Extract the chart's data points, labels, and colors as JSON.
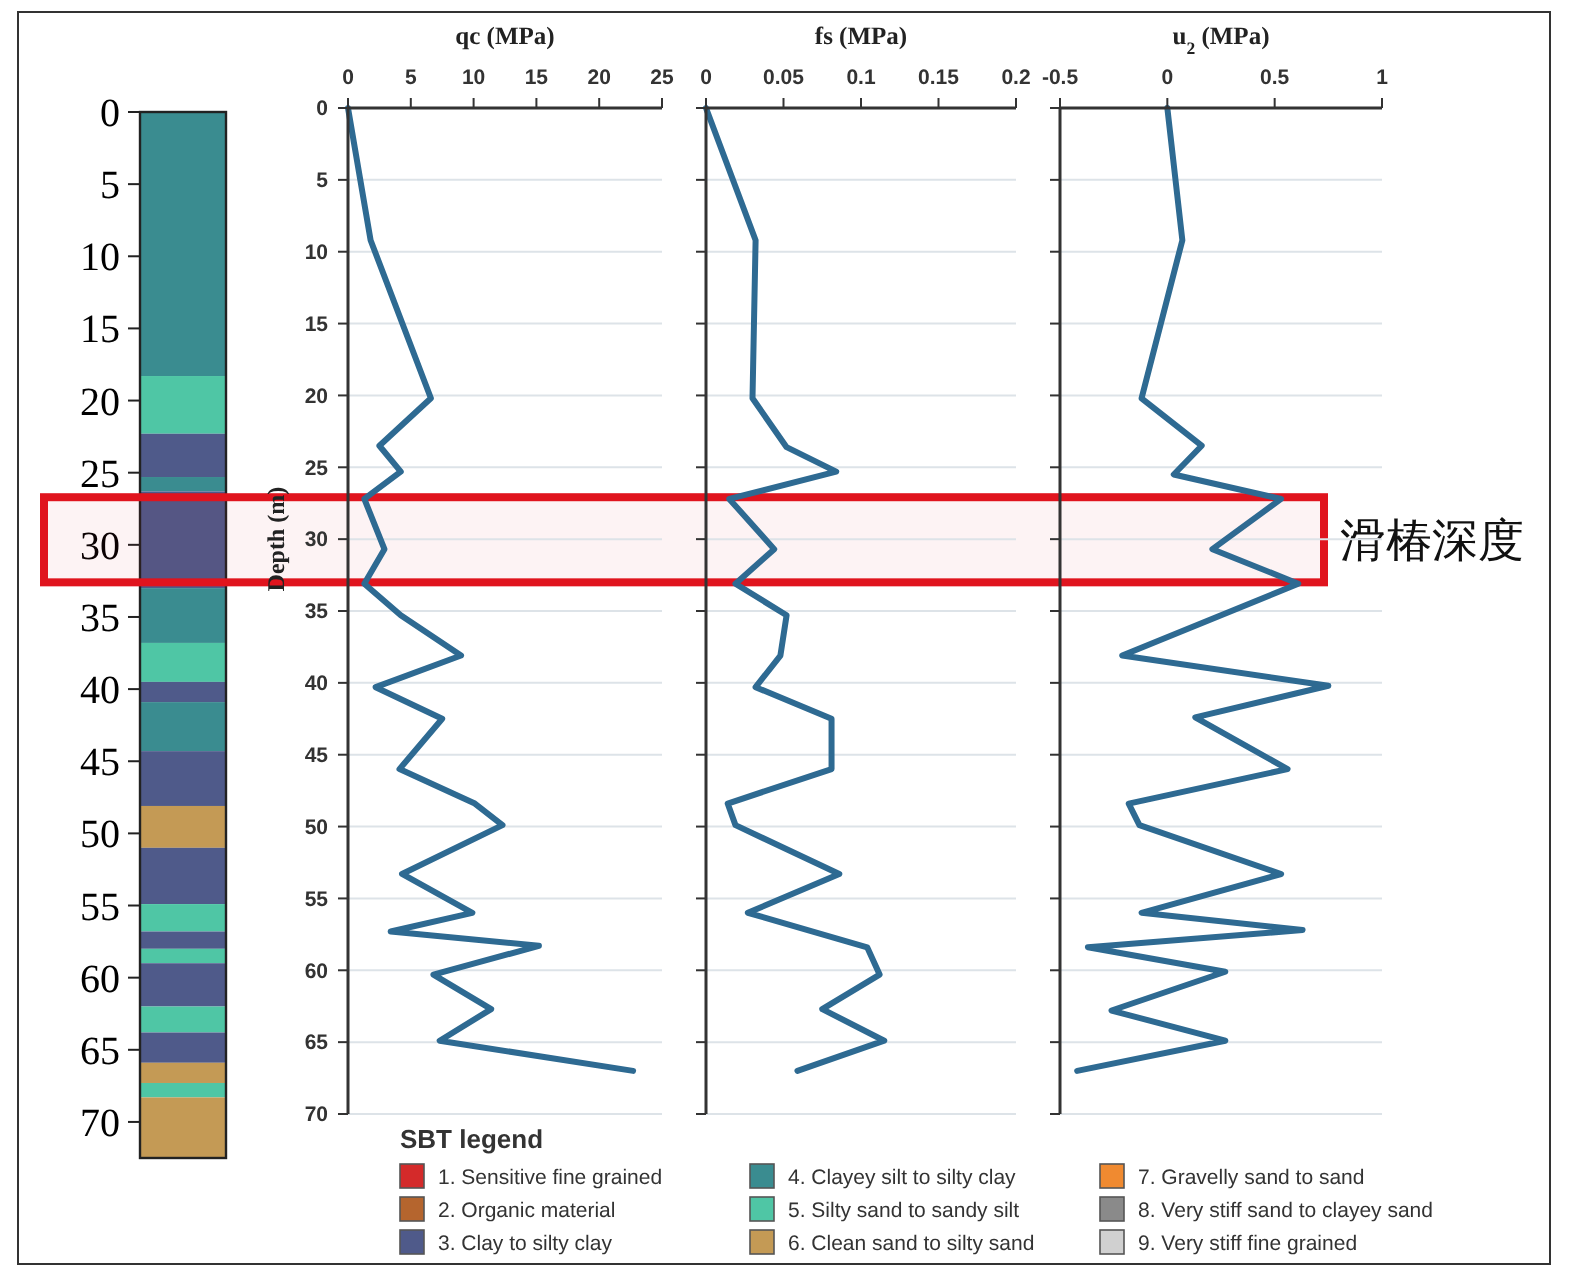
{
  "chart_data": [
    {
      "type": "bar",
      "stacked": true,
      "categories": [
        null
      ],
      "ylim": [
        72.5,
        0
      ],
      "yticks": [
        0,
        5,
        10,
        15,
        20,
        25,
        30,
        35,
        40,
        45,
        50,
        55,
        60,
        65,
        70
      ],
      "tick_labels": "y",
      "bands": [
        {
          "axis": "y",
          "from": 26.7,
          "to": 32.6,
          "label": "滑椿深度",
          "color": "#e0141e"
        }
      ],
      "series": [
        {
          "color": "#3a8c90",
          "values": [
            18.3
          ]
        },
        {
          "color": "#4fc6a5",
          "values": [
            4
          ]
        },
        {
          "color": "#4f5a8a",
          "values": [
            3
          ]
        },
        {
          "color": "#3a8c90",
          "values": [
            1
          ]
        },
        {
          "color": "#4f5a8a",
          "values": [
            6.7
          ]
        },
        {
          "color": "#3a8c90",
          "values": [
            3.8
          ]
        },
        {
          "color": "#4fc6a5",
          "values": [
            2.7
          ]
        },
        {
          "color": "#4f5a8a",
          "values": [
            1.4
          ]
        },
        {
          "color": "#3a8c90",
          "values": [
            3.4
          ]
        },
        {
          "color": "#4f5a8a",
          "values": [
            3.8
          ]
        },
        {
          "color": "#c49a55",
          "values": [
            2.9
          ]
        },
        {
          "color": "#4f5a8a",
          "values": [
            3.9
          ]
        },
        {
          "color": "#4fc6a5",
          "values": [
            1.9
          ]
        },
        {
          "color": "#4f5a8a",
          "values": [
            1.2
          ]
        },
        {
          "color": "#4fc6a5",
          "values": [
            1
          ]
        },
        {
          "color": "#4f5a8a",
          "values": [
            3
          ]
        },
        {
          "color": "#4fc6a5",
          "values": [
            1.8
          ]
        },
        {
          "color": "#4f5a8a",
          "values": [
            2.1
          ]
        },
        {
          "color": "#c49a55",
          "values": [
            1.4
          ]
        },
        {
          "color": "#4fc6a5",
          "values": [
            1
          ]
        },
        {
          "color": "#c49a55",
          "values": [
            4.2
          ]
        }
      ]
    },
    {
      "type": "line",
      "title": "qc (MPa)",
      "ylabel": "Depth (m)",
      "xlim": [
        0,
        25
      ],
      "xticks": [
        0,
        5,
        10,
        15,
        20,
        25
      ],
      "ylim": [
        70,
        0
      ],
      "yticks": [
        0,
        5,
        10,
        15,
        20,
        25,
        30,
        35,
        40,
        45,
        50,
        55,
        60,
        65,
        70
      ],
      "grid": "y",
      "series": [
        {
          "color": "#2e6a92",
          "x": [
            0,
            1.8,
            6.6,
            2.5,
            4.2,
            1.3,
            2.9,
            1.3,
            4.2,
            9.0,
            2.2,
            7.5,
            4.1,
            10.1,
            12.3,
            4.3,
            9.9,
            3.4,
            15.2,
            6.8,
            11.4,
            7.3,
            22.7
          ],
          "values": [
            0,
            9.2,
            20.2,
            23.5,
            25.3,
            27.2,
            30.7,
            33.1,
            35.3,
            38.1,
            40.3,
            42.5,
            46.0,
            48.4,
            49.9,
            53.3,
            56.0,
            57.3,
            58.3,
            60.3,
            62.7,
            64.9,
            67.0
          ]
        }
      ]
    },
    {
      "type": "line",
      "title": "fs (MPa)",
      "xlim": [
        0,
        0.2
      ],
      "xticks": [
        0,
        0.05,
        0.1,
        0.15,
        0.2
      ],
      "ylim": [
        70,
        0
      ],
      "yticks": [
        0,
        5,
        10,
        15,
        20,
        25,
        30,
        35,
        40,
        45,
        50,
        55,
        60,
        65,
        70
      ],
      "tick_labels": "x",
      "grid": "y",
      "series": [
        {
          "color": "#2e6a92",
          "x": [
            0,
            0.032,
            0.03,
            0.052,
            0.084,
            0.015,
            0.044,
            0.019,
            0.052,
            0.048,
            0.032,
            0.081,
            0.081,
            0.014,
            0.019,
            0.086,
            0.027,
            0.104,
            0.112,
            0.075,
            0.115,
            0.059
          ],
          "values": [
            0,
            9.2,
            20.2,
            23.6,
            25.3,
            27.2,
            30.7,
            33.1,
            35.3,
            38.1,
            40.3,
            42.5,
            46.0,
            48.4,
            49.9,
            53.3,
            56.0,
            58.4,
            60.3,
            62.7,
            64.9,
            67.0
          ]
        }
      ]
    },
    {
      "type": "line",
      "title": "u$_{2}$ (MPa)",
      "xlim": [
        -0.5,
        1
      ],
      "xticks": [
        -0.5,
        0,
        0.5,
        1
      ],
      "ylim": [
        70,
        0
      ],
      "yticks": [
        0,
        5,
        10,
        15,
        20,
        25,
        30,
        35,
        40,
        45,
        50,
        55,
        60,
        65,
        70
      ],
      "tick_labels": "x",
      "grid": "y",
      "series": [
        {
          "color": "#2e6a92",
          "x": [
            0,
            0.07,
            -0.12,
            0.16,
            0.03,
            0.53,
            0.21,
            0.61,
            -0.21,
            0.75,
            0.13,
            0.56,
            -0.18,
            -0.13,
            0.53,
            -0.12,
            0.63,
            -0.37,
            0.27,
            -0.26,
            0.27,
            -0.42
          ],
          "values": [
            0,
            9.2,
            20.2,
            23.5,
            25.5,
            27.2,
            30.7,
            33.1,
            38.1,
            40.2,
            42.4,
            46.0,
            48.4,
            49.9,
            53.3,
            56.0,
            57.2,
            58.4,
            60.1,
            62.8,
            64.9,
            67.0
          ]
        }
      ]
    },
    {
      "type": "other",
      "title": "SBT legend",
      "annotations": [
        "1. Sensitive fine grained",
        "2. Organic material",
        "3. Clay to silty clay",
        "4. Clayey silt to silty clay",
        "5. Silty sand to sandy silt",
        "6. Clean sand to silty sand",
        "7. Gravelly sand to sand",
        "8. Very stiff sand to clayey sand",
        "9. Very stiff fine grained"
      ],
      "colors": [
        "#d42a2a",
        "#b5652e",
        "#4f5a8a",
        "#3a8c90",
        "#4fc6a5",
        "#c49a55",
        "#f08a30",
        "#8a8a8a",
        "#d0d0d0"
      ]
    }
  ]
}
